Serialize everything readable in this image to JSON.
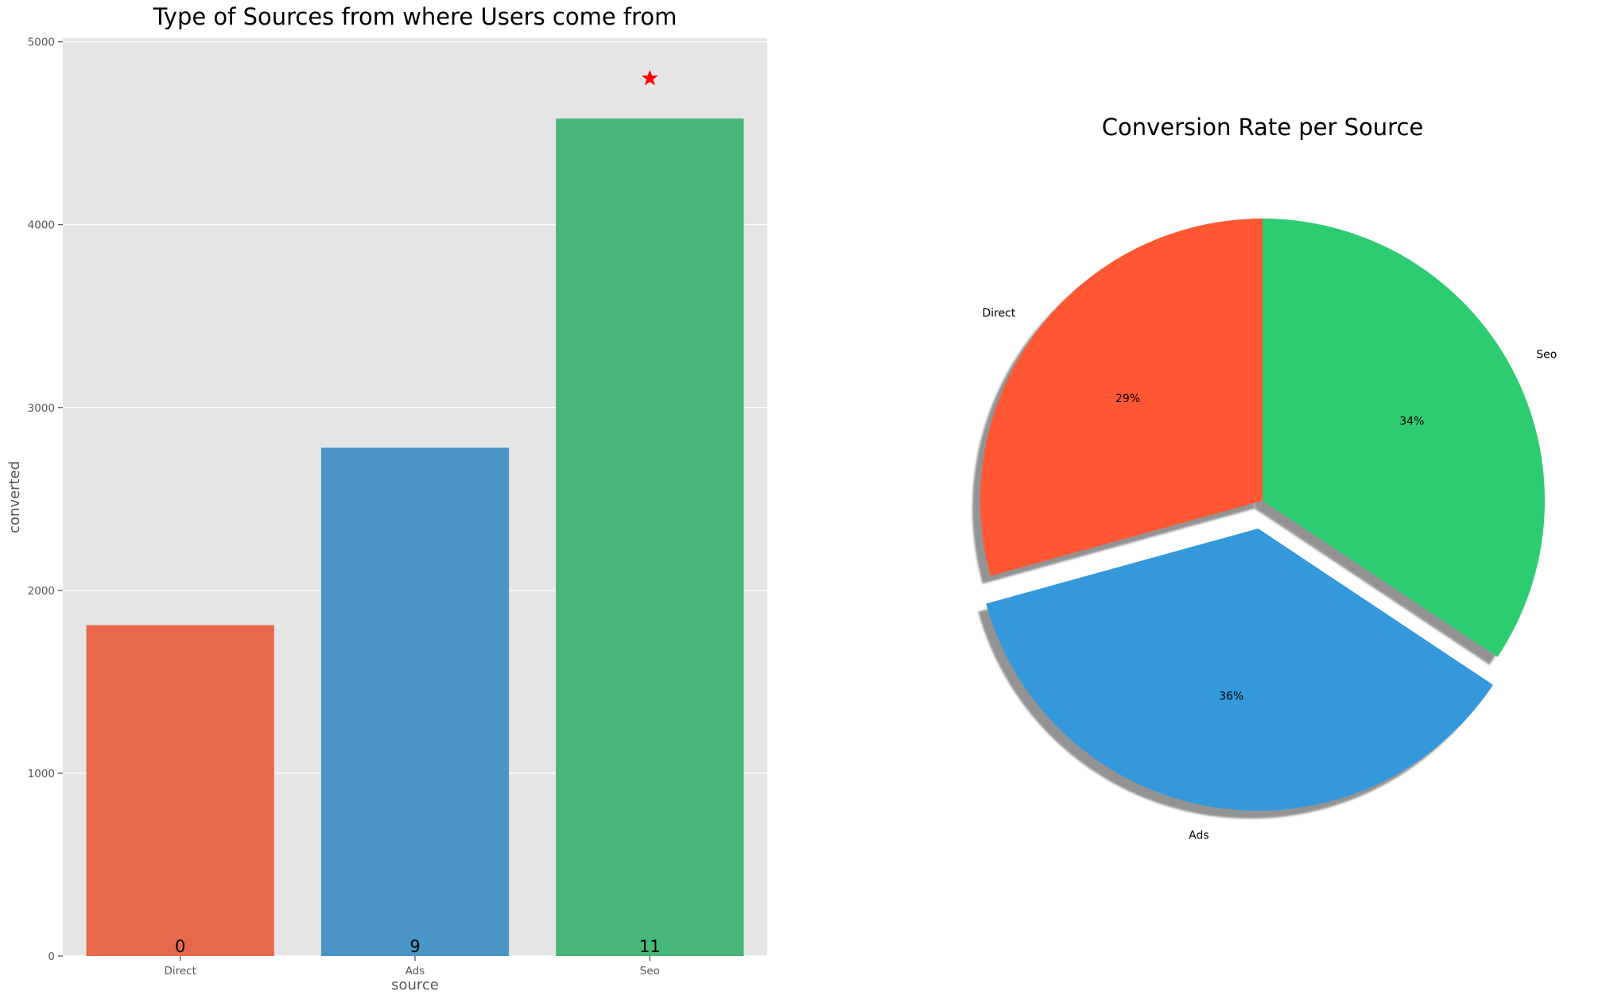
{
  "chart_data": [
    {
      "type": "bar",
      "title": "Type of Sources from where Users come from",
      "xlabel": "source",
      "ylabel": "converted",
      "categories": [
        "Direct",
        "Ads",
        "Seo"
      ],
      "values": [
        1810,
        2780,
        4580
      ],
      "bar_labels": [
        "0",
        "9",
        "11"
      ],
      "colors": [
        "#e8684c",
        "#4a94c6",
        "#46b776"
      ],
      "ylim": [
        0,
        5020
      ],
      "yticks": [
        0,
        1000,
        2000,
        3000,
        4000,
        5000
      ],
      "ytick_labels": [
        "0",
        "1000",
        "2000",
        "3000",
        "4000",
        "5000"
      ],
      "grid": true,
      "background": "#e5e5e5",
      "marker": {
        "category": "Seo",
        "y": 4800,
        "symbol": "star",
        "color": "#ff0000"
      }
    },
    {
      "type": "pie",
      "title": "Conversion Rate per Source",
      "labels": [
        "Direct",
        "Ads",
        "Seo"
      ],
      "values": [
        29,
        36,
        34
      ],
      "pct_labels": [
        "29%",
        "36%",
        "34%"
      ],
      "colors": [
        "#ff5733",
        "#3498db",
        "#2ecc71"
      ],
      "start_angle_deg": 90,
      "explode": [
        0,
        0.1,
        0
      ],
      "shadow": true
    }
  ]
}
